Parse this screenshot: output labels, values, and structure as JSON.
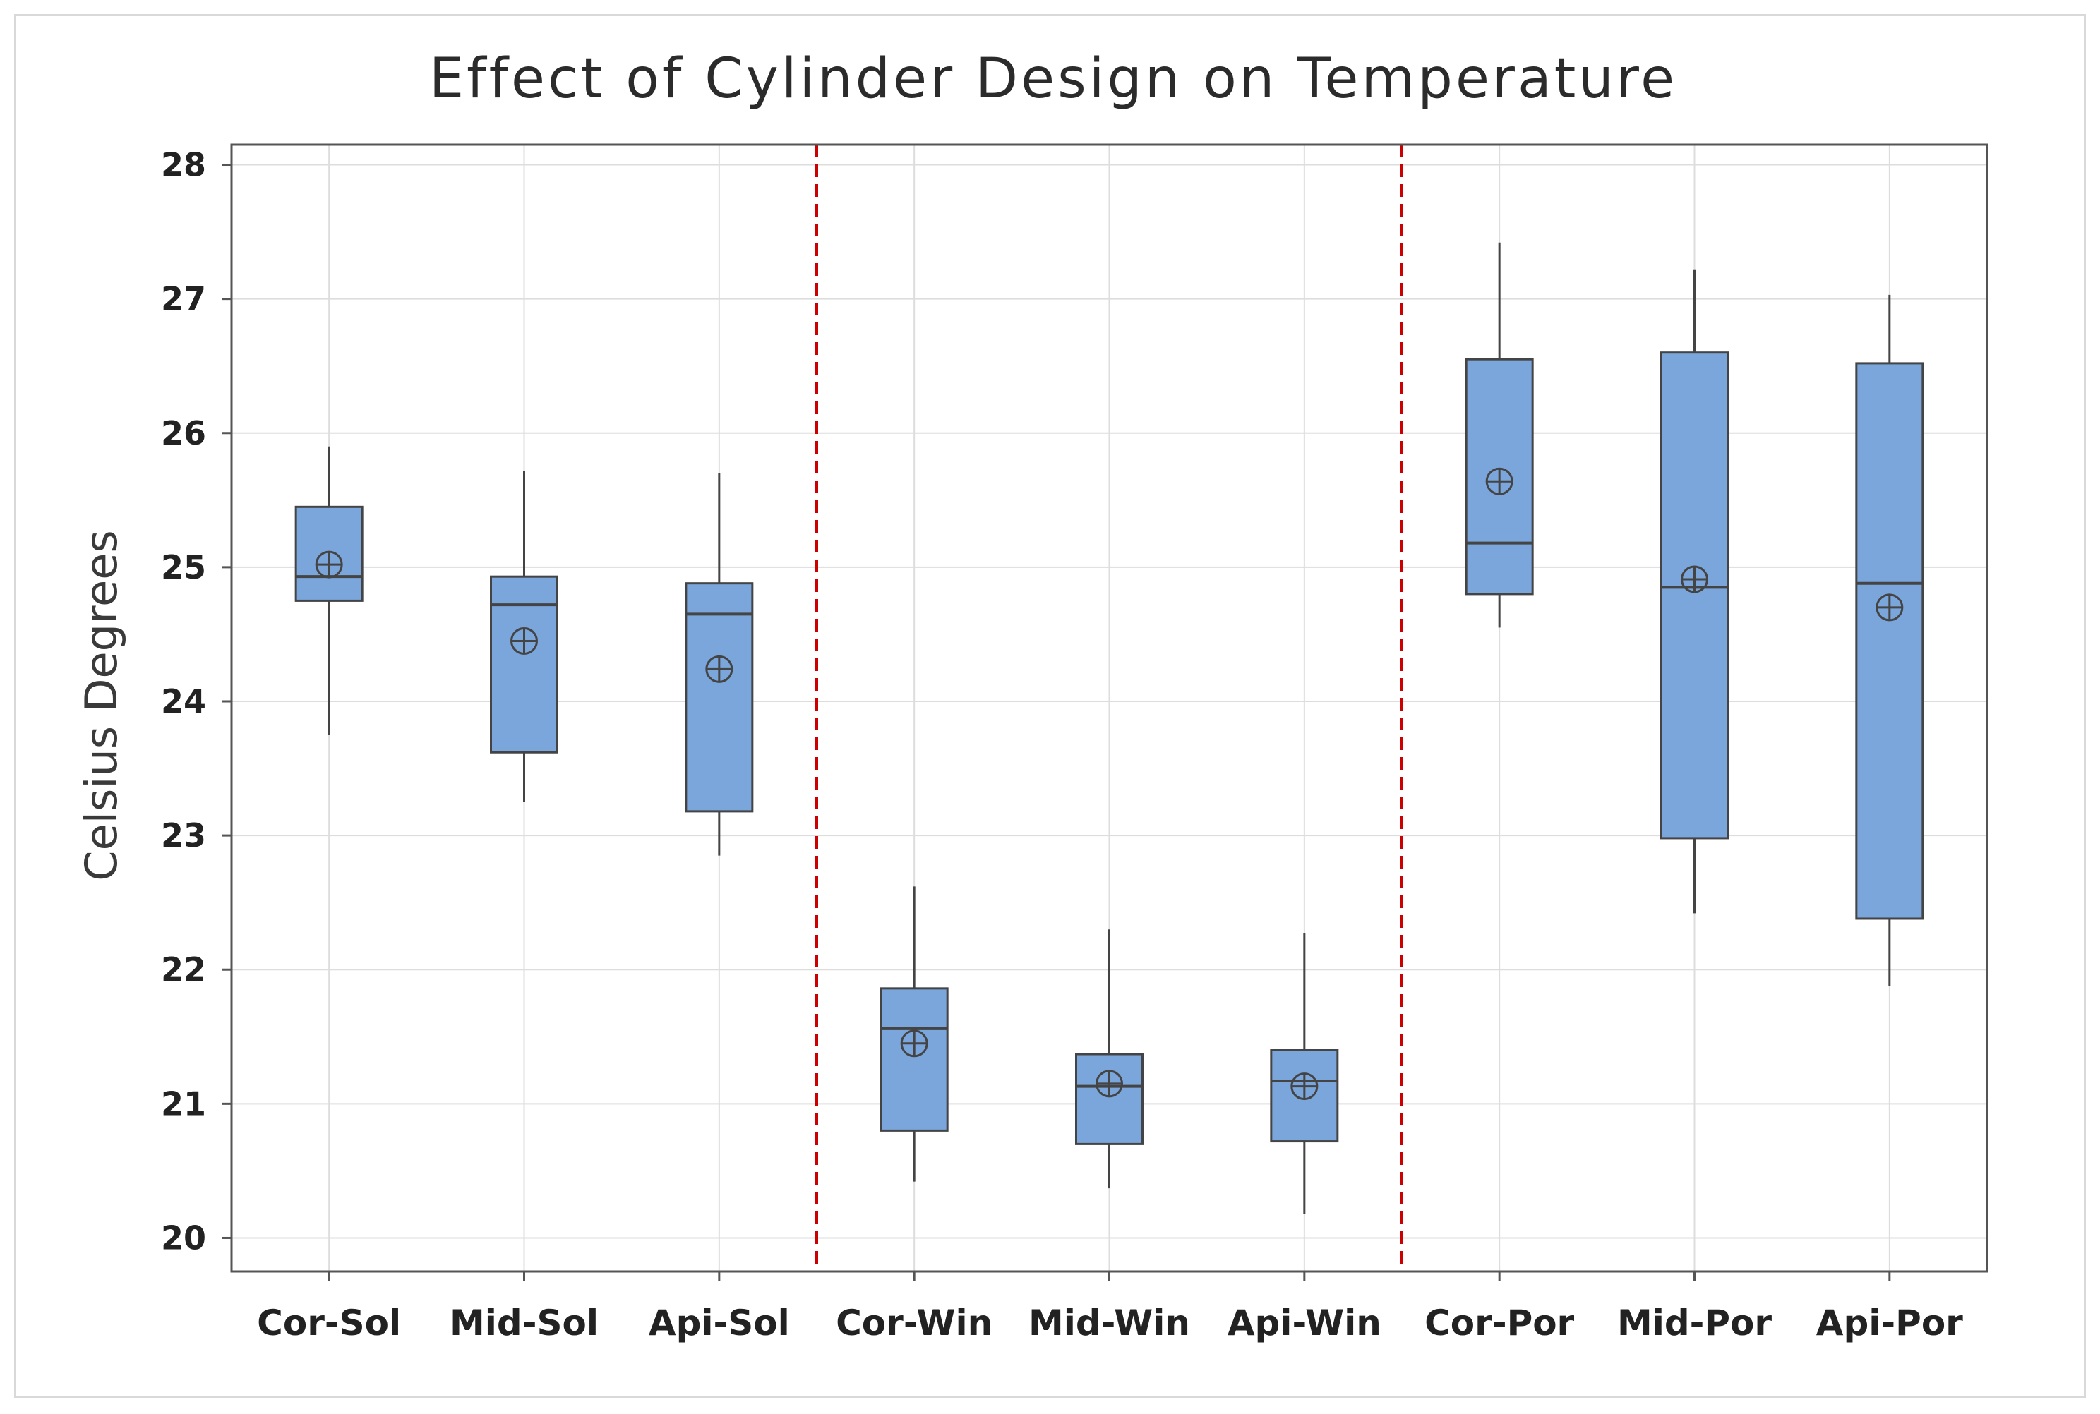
{
  "chart_data": {
    "type": "boxplot",
    "title": "Effect of Cylinder Design on Temperature",
    "xlabel": "",
    "ylabel": "Celsius Degrees",
    "ylim": [
      19.75,
      28.15
    ],
    "yticks": [
      20,
      21,
      22,
      23,
      24,
      25,
      26,
      27,
      28
    ],
    "grid": true,
    "group_separators_after": [
      3,
      6
    ],
    "colors": {
      "box_fill": "#7aa6dc",
      "box_stroke": "#444444",
      "grid": "#dddddd",
      "separator": "#cc0000",
      "frame": "#555555"
    },
    "categories": [
      "Cor-Sol",
      "Mid-Sol",
      "Api-Sol",
      "Cor-Win",
      "Mid-Win",
      "Api-Win",
      "Cor-Por",
      "Mid-Por",
      "Api-Por"
    ],
    "boxes": [
      {
        "label": "Cor-Sol",
        "whisker_low": 23.75,
        "q1": 24.75,
        "median": 24.93,
        "q3": 25.45,
        "whisker_high": 25.9,
        "mean": 25.02
      },
      {
        "label": "Mid-Sol",
        "whisker_low": 23.25,
        "q1": 23.62,
        "median": 24.72,
        "q3": 24.93,
        "whisker_high": 25.72,
        "mean": 24.45
      },
      {
        "label": "Api-Sol",
        "whisker_low": 22.85,
        "q1": 23.18,
        "median": 24.65,
        "q3": 24.88,
        "whisker_high": 25.7,
        "mean": 24.24
      },
      {
        "label": "Cor-Win",
        "whisker_low": 20.42,
        "q1": 20.8,
        "median": 21.56,
        "q3": 21.86,
        "whisker_high": 22.62,
        "mean": 21.45
      },
      {
        "label": "Mid-Win",
        "whisker_low": 20.37,
        "q1": 20.7,
        "median": 21.13,
        "q3": 21.37,
        "whisker_high": 22.3,
        "mean": 21.15
      },
      {
        "label": "Api-Win",
        "whisker_low": 20.18,
        "q1": 20.72,
        "median": 21.17,
        "q3": 21.4,
        "whisker_high": 22.27,
        "mean": 21.13
      },
      {
        "label": "Cor-Por",
        "whisker_low": 24.55,
        "q1": 24.8,
        "median": 25.18,
        "q3": 26.55,
        "whisker_high": 27.42,
        "mean": 25.64
      },
      {
        "label": "Mid-Por",
        "whisker_low": 22.42,
        "q1": 22.98,
        "median": 24.85,
        "q3": 26.6,
        "whisker_high": 27.22,
        "mean": 24.91
      },
      {
        "label": "Api-Por",
        "whisker_low": 21.88,
        "q1": 22.38,
        "median": 24.88,
        "q3": 26.52,
        "whisker_high": 27.03,
        "mean": 24.7
      }
    ]
  }
}
